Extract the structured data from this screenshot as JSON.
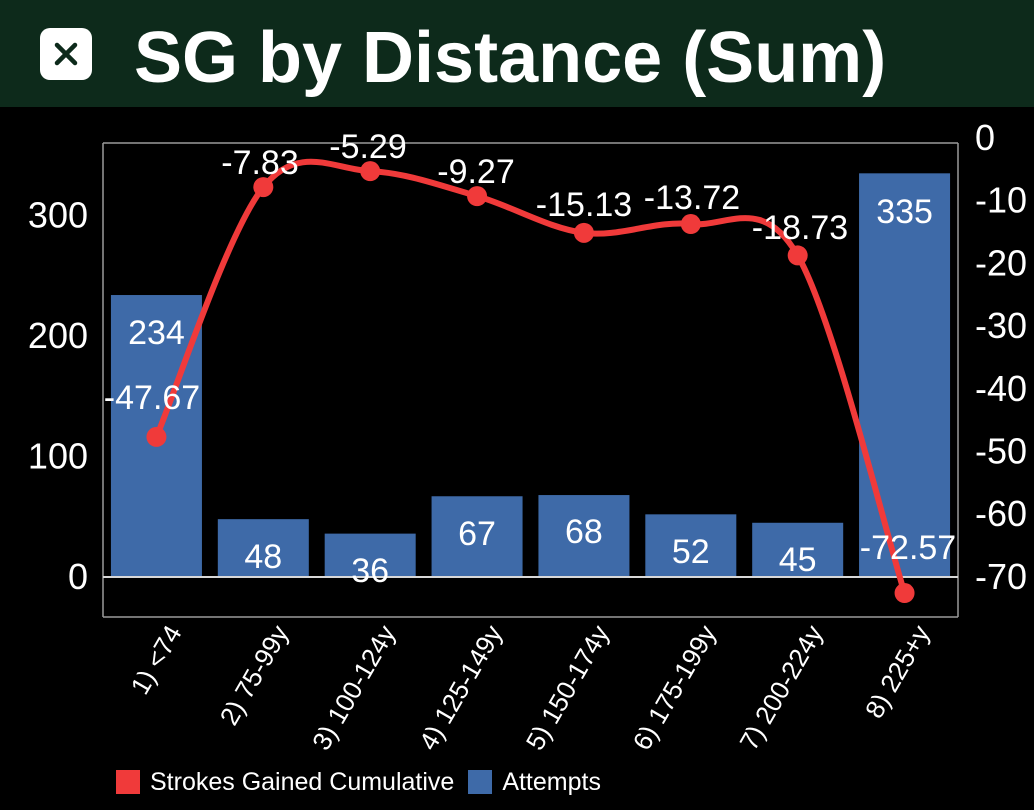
{
  "header": {
    "title": "SG by Distance (Sum)",
    "close_icon": "close-icon",
    "background_color": "#0d2a1b"
  },
  "chart_data": {
    "type": "bar",
    "title": "SG by Distance (Sum)",
    "categories": [
      "1) <74",
      "2) 75-99y",
      "3) 100-124y",
      "4) 125-149y",
      "5) 150-174y",
      "6) 175-199y",
      "7) 200-224y",
      "8) 225+y"
    ],
    "series": [
      {
        "name": "Attempts",
        "type": "bar",
        "axis": "left",
        "color": "#3e6aa8",
        "values": [
          234,
          48,
          36,
          67,
          68,
          52,
          45,
          335
        ],
        "labels": [
          "234",
          "48",
          "36",
          "67",
          "68",
          "52",
          "45",
          "335"
        ]
      },
      {
        "name": "Strokes Gained Cumulative",
        "type": "line",
        "axis": "right",
        "color": "#f03a3a",
        "values": [
          -47.67,
          -7.83,
          -5.29,
          -9.27,
          -15.13,
          -13.72,
          -18.73,
          -72.57
        ],
        "labels": [
          "-47.67",
          "-7.83",
          "-5.29",
          "-9.27",
          "-15.13",
          "-13.72",
          "-18.73",
          "-72.57"
        ]
      }
    ],
    "y_left": {
      "ticks": [
        "0",
        "100",
        "200",
        "300"
      ],
      "tick_values": [
        0,
        100,
        200,
        300
      ],
      "ylim": [
        -33,
        360
      ]
    },
    "y_right": {
      "ticks": [
        "0",
        "-10",
        "-20",
        "-30",
        "-40",
        "-50",
        "-60",
        "-70"
      ],
      "tick_values": [
        0,
        -10,
        -20,
        -30,
        -40,
        -50,
        -60,
        -70
      ],
      "ylim": [
        -72.6,
        0
      ]
    },
    "xlabel": "",
    "ylabel": "",
    "grid": false,
    "legend": {
      "placement": "bottom",
      "items": [
        {
          "label": "Strokes Gained Cumulative",
          "color": "#f03a3a"
        },
        {
          "label": "Attempts",
          "color": "#3e6aa8"
        }
      ]
    }
  }
}
